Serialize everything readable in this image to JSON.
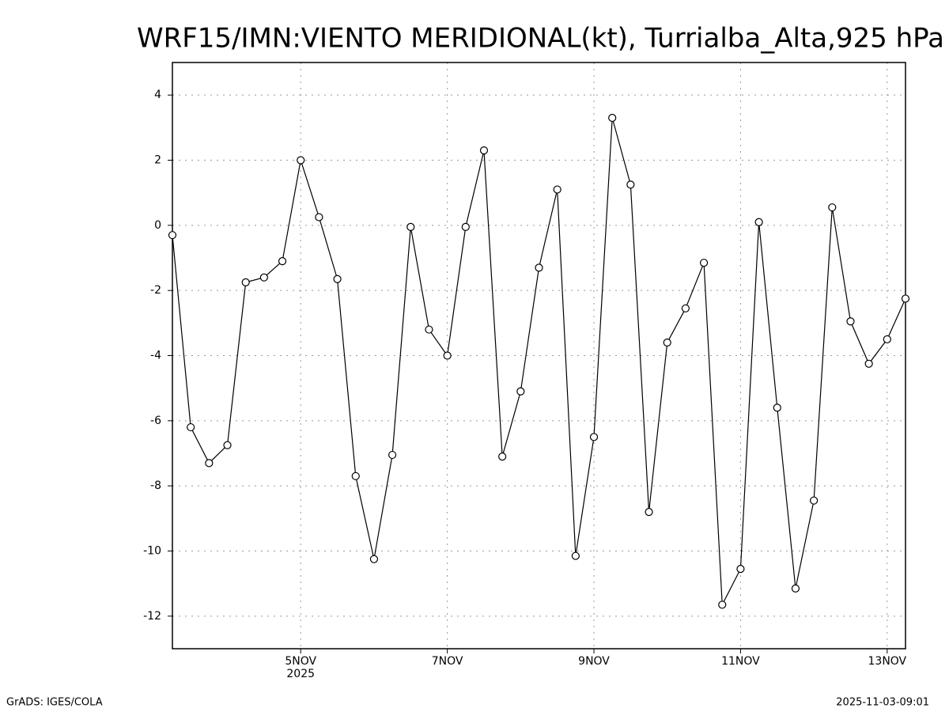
{
  "chart_data": {
    "type": "line",
    "title": "WRF15/IMN:VIENTO MERIDIONAL(kt), Turrialba_Alta,925 hPa",
    "x": [
      3.25,
      3.5,
      3.75,
      4,
      4.25,
      4.5,
      4.75,
      5,
      5.25,
      5.5,
      5.75,
      6,
      6.25,
      6.5,
      6.75,
      7,
      7.25,
      7.5,
      7.75,
      8,
      8.25,
      8.5,
      8.75,
      9,
      9.25,
      9.5,
      9.75,
      10,
      10.25,
      10.5,
      10.75,
      11,
      11.25,
      11.5,
      11.75,
      12,
      12.25,
      12.5,
      12.75,
      13,
      13.25
    ],
    "series": [
      {
        "color": "#000000",
        "values": [
          -0.3,
          -6.2,
          -7.3,
          -6.75,
          -1.75,
          -1.6,
          -1.1,
          2.0,
          0.25,
          -1.65,
          -7.7,
          -10.25,
          -7.05,
          -0.05,
          -3.2,
          -4.0,
          -0.05,
          2.3,
          -7.1,
          -5.1,
          -1.3,
          1.1,
          -10.15,
          -6.5,
          3.3,
          1.25,
          -8.8,
          -3.6,
          -2.55,
          -1.15,
          -11.65,
          -10.55,
          0.1,
          -5.6,
          -11.15,
          -8.45,
          0.55,
          -2.95,
          -4.25,
          -3.5,
          -2.25
        ]
      }
    ],
    "xlim": [
      3.25,
      13.25
    ],
    "xticks": [
      {
        "value": 5,
        "label": "5NOV"
      },
      {
        "value": 7,
        "label": "7NOV"
      },
      {
        "value": 9,
        "label": "9NOV"
      },
      {
        "value": 11,
        "label": "11NOV"
      },
      {
        "value": 13,
        "label": "13NOV"
      }
    ],
    "xtick_year": "2025",
    "ylim": [
      -13,
      5
    ],
    "yticks": [
      -12,
      -10,
      -8,
      -6,
      -4,
      -2,
      0,
      2,
      4
    ],
    "grid": true,
    "footer_left": "GrADS: IGES/COLA",
    "footer_right": "2025-11-03-09:01"
  }
}
